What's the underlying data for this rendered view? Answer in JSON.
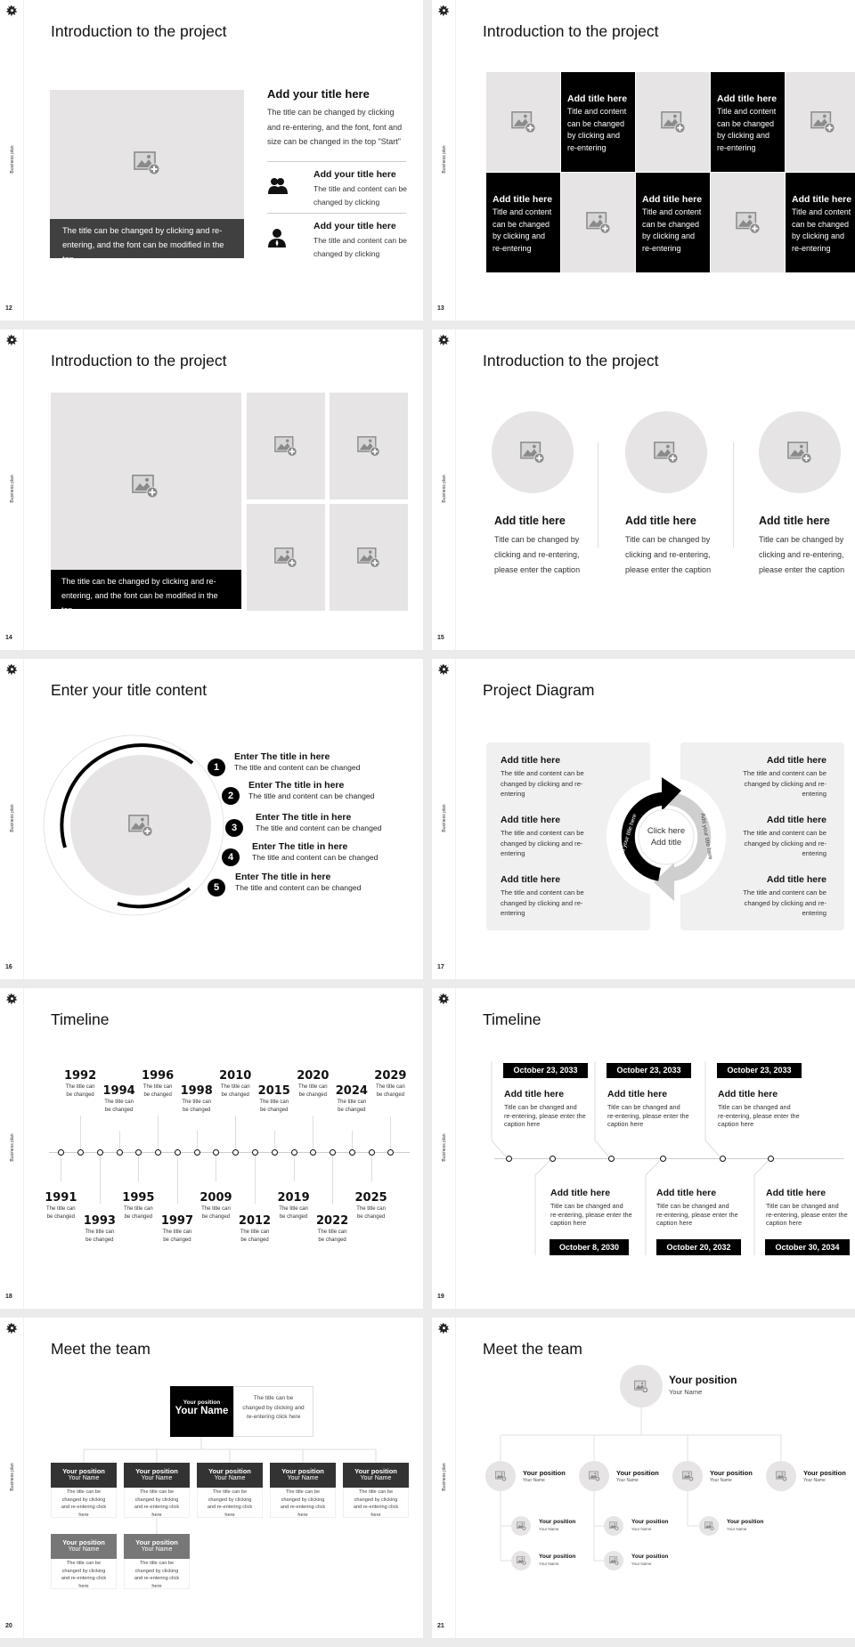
{
  "sidebar_label": "Business plan",
  "colors": {
    "placeholder": "#e6e4e4",
    "dark": "#000000",
    "caption_bar": "#404040",
    "team_header": "#333333",
    "team_header_secondary": "#777777",
    "panel": "#f0f0f0"
  },
  "slides": {
    "s12": {
      "page": "12",
      "title": "Introduction to the project",
      "caption": "The title can be changed by clicking and re-entering, and the font can be modified in the top",
      "heading": "Add your title here",
      "body": "The title can be changed by clicking and re-entering, and the font, font and size can be changed in the top \"Start\"",
      "items": [
        {
          "icon": "group-icon",
          "title": "Add your title here",
          "text": "The title and content can be changed by clicking"
        },
        {
          "icon": "person-icon",
          "title": "Add your title here",
          "text": "The title and content can be changed by clicking"
        }
      ]
    },
    "s13": {
      "page": "13",
      "title": "Introduction to the project",
      "cells": [
        {
          "type": "image"
        },
        {
          "type": "text",
          "title": "Add title here",
          "text": "Title and content can be changed by clicking and re-entering"
        },
        {
          "type": "image"
        },
        {
          "type": "text",
          "title": "Add title here",
          "text": "Title and content can be changed by clicking and re-entering"
        },
        {
          "type": "image"
        },
        {
          "type": "text",
          "title": "Add title here",
          "text": "Title and content can be changed by clicking and re-entering"
        },
        {
          "type": "image"
        },
        {
          "type": "text",
          "title": "Add title here",
          "text": "Title and content can be changed by clicking and re-entering"
        },
        {
          "type": "image"
        },
        {
          "type": "text",
          "title": "Add title here",
          "text": "Title and content can be changed by clicking and re-entering"
        }
      ]
    },
    "s14": {
      "page": "14",
      "title": "Introduction to the project",
      "caption": "The title can be changed by clicking and re-entering, and the font can be modified in the top"
    },
    "s15": {
      "page": "15",
      "title": "Introduction to the project",
      "columns": [
        {
          "title": "Add title here",
          "text": "Title can be changed by clicking and re-entering, please enter the caption"
        },
        {
          "title": "Add title here",
          "text": "Title can be changed by clicking and re-entering, please enter the caption"
        },
        {
          "title": "Add title here",
          "text": "Title can be changed by clicking and re-entering, please enter the caption"
        }
      ]
    },
    "s16": {
      "page": "16",
      "title": "Enter your title content",
      "items": [
        {
          "number": "1",
          "title": "Enter The title in here",
          "text": "The title and content can be changed"
        },
        {
          "number": "2",
          "title": "Enter The title in here",
          "text": "The title and content can be changed"
        },
        {
          "number": "3",
          "title": "Enter The title in here",
          "text": "The title and content can be changed"
        },
        {
          "number": "4",
          "title": "Enter The title in here",
          "text": "The title and content can be changed"
        },
        {
          "number": "5",
          "title": "Enter The title in here",
          "text": "The title and content can be changed"
        }
      ]
    },
    "s17": {
      "page": "17",
      "title": "Project Diagram",
      "center": [
        "Click here",
        "Add title"
      ],
      "arrow_left_label": "Add your title here",
      "arrow_right_label": "Add your title here",
      "left": [
        {
          "title": "Add title here",
          "text": "The title and content can be changed by clicking and re-entering"
        },
        {
          "title": "Add title here",
          "text": "The title and content can be changed by clicking and re-entering"
        },
        {
          "title": "Add title here",
          "text": "The title and content can be changed by clicking and re-entering"
        }
      ],
      "right": [
        {
          "title": "Add title here",
          "text": "The title and content can be changed by clicking and re-entering"
        },
        {
          "title": "Add title here",
          "text": "The title and content can be changed by clicking and re-entering"
        },
        {
          "title": "Add title here",
          "text": "The title and content can be changed by clicking and re-entering"
        }
      ]
    },
    "s18": {
      "page": "18",
      "title": "Timeline",
      "events": [
        {
          "year": "1991",
          "text": "The title can be changed"
        },
        {
          "year": "1992",
          "text": "The title can be changed"
        },
        {
          "year": "1993",
          "text": "The title can be changed"
        },
        {
          "year": "1994",
          "text": "The title can be changed"
        },
        {
          "year": "1995",
          "text": "The title can be changed"
        },
        {
          "year": "1996",
          "text": "The title can be changed"
        },
        {
          "year": "1997",
          "text": "The title can be changed"
        },
        {
          "year": "1998",
          "text": "The title can be changed"
        },
        {
          "year": "2009",
          "text": "The title can be changed"
        },
        {
          "year": "2010",
          "text": "The title can be changed"
        },
        {
          "year": "2012",
          "text": "The title can be changed"
        },
        {
          "year": "2015",
          "text": "The title can be changed"
        },
        {
          "year": "2019",
          "text": "The title can be changed"
        },
        {
          "year": "2020",
          "text": "The title can be changed"
        },
        {
          "year": "2022",
          "text": "The title can be changed"
        },
        {
          "year": "2024",
          "text": "The title can be changed"
        },
        {
          "year": "2025",
          "text": "The title can be changed"
        },
        {
          "year": "2029",
          "text": "The title can be changed"
        }
      ]
    },
    "s19": {
      "page": "19",
      "title": "Timeline",
      "top": [
        {
          "date": "October 23, 2033",
          "title": "Add title here",
          "text": "Title can be changed and re-entering, please enter the caption here"
        },
        {
          "date": "October 23, 2033",
          "title": "Add title here",
          "text": "Title can be changed and re-entering, please enter the caption here"
        },
        {
          "date": "October 23, 2033",
          "title": "Add title here",
          "text": "Title can be changed and re-entering, please enter the caption here"
        }
      ],
      "bottom": [
        {
          "date": "October 8, 2030",
          "title": "Add title here",
          "text": "Title can be changed and re-entering, please enter the caption here"
        },
        {
          "date": "October 20, 2032",
          "title": "Add title here",
          "text": "Title can be changed and re-entering, please enter the caption here"
        },
        {
          "date": "October 30, 2034",
          "title": "Add title here",
          "text": "Title can be changed and re-entering, please enter the caption here"
        }
      ]
    },
    "s20": {
      "page": "20",
      "title": "Meet the team",
      "lead": {
        "position": "Your position",
        "name": "Your Name",
        "text": "The title can be changed by clicking and re-entering click here"
      },
      "members": [
        {
          "position": "Your position",
          "name": "Your Name",
          "text": "The title can be changed by clicking and re-entering click here"
        },
        {
          "position": "Your position",
          "name": "Your Name",
          "text": "The title can be changed by clicking and re-entering click here"
        },
        {
          "position": "Your position",
          "name": "Your Name",
          "text": "The title can be changed by clicking and re-entering click here"
        },
        {
          "position": "Your position",
          "name": "Your Name",
          "text": "The title can be changed by clicking and re-entering click here"
        },
        {
          "position": "Your position",
          "name": "Your Name",
          "text": "The title can be changed by clicking and re-entering click here"
        },
        {
          "position": "Your position",
          "name": "Your Name",
          "text": "The title can be changed by clicking and re-entering click here"
        },
        {
          "position": "Your position",
          "name": "Your Name",
          "text": "The title can be changed by clicking and re-entering click here"
        }
      ]
    },
    "s21": {
      "page": "21",
      "title": "Meet the team",
      "lead": {
        "position": "Your position",
        "name": "Your Name"
      },
      "level2": [
        {
          "position": "Your position",
          "name": "Your Name"
        },
        {
          "position": "Your position",
          "name": "Your Name"
        },
        {
          "position": "Your position",
          "name": "Your Name"
        },
        {
          "position": "Your position",
          "name": "Your Name"
        }
      ],
      "level3": [
        {
          "position": "Your position",
          "name": "Your Name"
        },
        {
          "position": "Your position",
          "name": "Your Name"
        },
        {
          "position": "Your position",
          "name": "Your Name"
        },
        {
          "position": "Your position",
          "name": "Your Name"
        },
        {
          "position": "Your position",
          "name": "Your Name"
        }
      ]
    }
  }
}
